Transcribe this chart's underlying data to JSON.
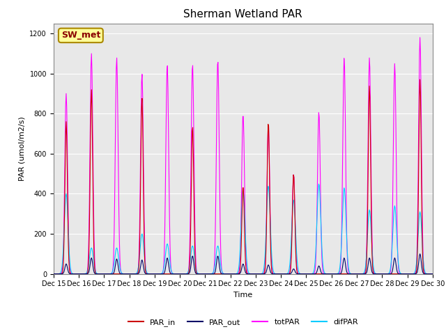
{
  "title": "Sherman Wetland PAR",
  "ylabel": "PAR (umol/m2/s)",
  "xlabel": "Time",
  "station_label": "SW_met",
  "ylim": [
    0,
    1250
  ],
  "n_days": 15,
  "colors": {
    "PAR_in": "#cc0000",
    "PAR_out": "#000066",
    "totPAR": "#ff00ff",
    "difPAR": "#00ccff"
  },
  "totPAR_peaks": [
    900,
    1100,
    1080,
    1000,
    1045,
    1050,
    1070,
    800,
    750,
    500,
    810,
    1080,
    1080,
    1050,
    1180
  ],
  "PARin_peaks": [
    760,
    920,
    0,
    880,
    0,
    740,
    0,
    440,
    760,
    500,
    0,
    0,
    940,
    0,
    970
  ],
  "PARout_peaks": [
    50,
    80,
    75,
    70,
    80,
    90,
    90,
    50,
    45,
    25,
    40,
    80,
    80,
    80,
    100
  ],
  "difPAR_peaks": [
    400,
    130,
    130,
    200,
    150,
    140,
    140,
    420,
    440,
    370,
    450,
    430,
    320,
    340,
    310
  ],
  "plot_bg": "#e8e8e8",
  "fig_bg": "#ffffff",
  "grid_color": "white",
  "title_fontsize": 11,
  "label_fontsize": 8,
  "tick_fontsize": 7,
  "legend_fontsize": 8
}
